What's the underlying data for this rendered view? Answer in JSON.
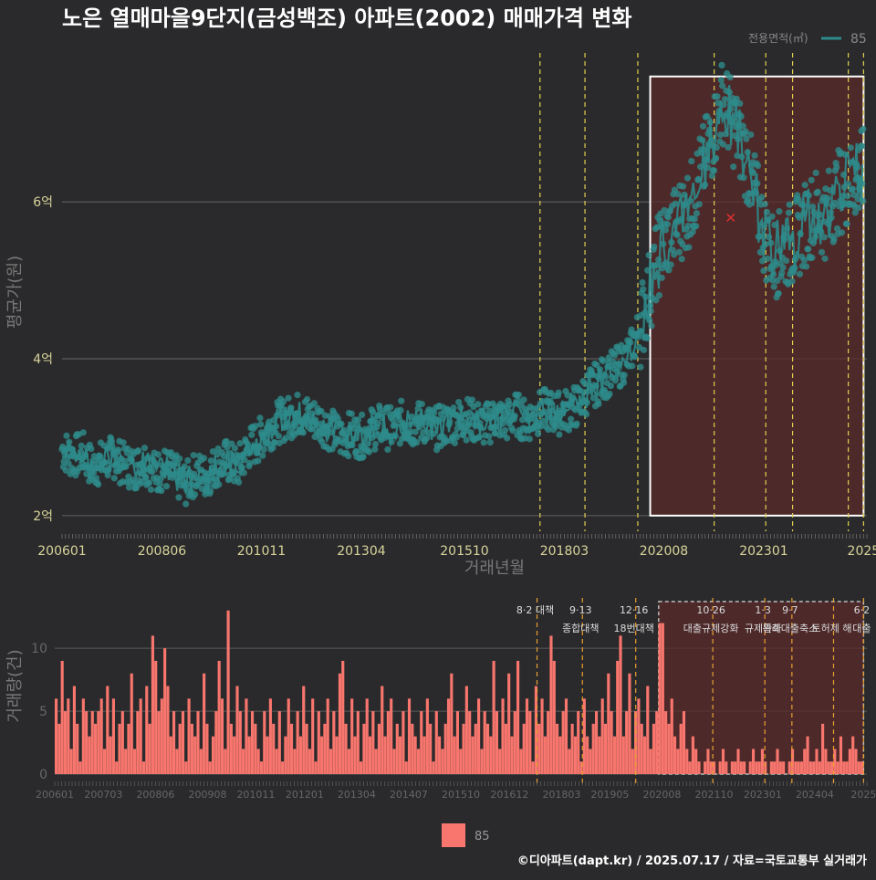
{
  "title": "노은 열매마을9단지(금성백조) 아파트(2002) 매매가격 변화",
  "legend_top": {
    "title": "전용면적(㎡)",
    "label": "85"
  },
  "legend_bottom": {
    "label": "85"
  },
  "footer": "©디아파트(dapt.kr) / 2025.07.17 / 자료=국토교통부 실거래가",
  "colors": {
    "background": "#2a2a2c",
    "series": "#2e8b8b",
    "bar": "#f8766d",
    "highlight_fill": "#5a2a2a",
    "vline": "#e0d050",
    "vline_orange": "#e8a030",
    "axis_text_top": "#d8d49a",
    "axis_text_bottom": "#666666",
    "grid": "#5a5a5a"
  },
  "chart_data": [
    {
      "type": "line",
      "title": "노은 열매마을9단지(금성백조) 아파트(2002) 매매가격 변화",
      "xlabel": "거래년월",
      "ylabel": "평균가(원)",
      "x_range": [
        2006.0,
        2025.5
      ],
      "ylim": [
        1.8,
        7.9
      ],
      "y_ticks": [
        {
          "value": 2,
          "label": "2억"
        },
        {
          "value": 4,
          "label": "4억"
        },
        {
          "value": 6,
          "label": "6억"
        }
      ],
      "x_ticks": [
        {
          "value": 2006.0,
          "label": "200601"
        },
        {
          "value": 2008.42,
          "label": "200806"
        },
        {
          "value": 2010.83,
          "label": "201011"
        },
        {
          "value": 2013.25,
          "label": "201304"
        },
        {
          "value": 2015.75,
          "label": "201510"
        },
        {
          "value": 2018.17,
          "label": "201803"
        },
        {
          "value": 2020.58,
          "label": "202008"
        },
        {
          "value": 2023.0,
          "label": "202301"
        },
        {
          "value": 2025.42,
          "label": "2025"
        }
      ],
      "highlight_range": [
        2020.25,
        2025.42
      ],
      "highlight_ylim": [
        2.0,
        7.6
      ],
      "policy_lines": [
        2017.58,
        2018.67,
        2019.95,
        2021.8,
        2023.05,
        2023.7,
        2025.05,
        2025.42
      ],
      "outlier": {
        "x": 2022.2,
        "y": 5.8
      },
      "series": [
        {
          "name": "85",
          "points": [
            [
              2006.0,
              2.85
            ],
            [
              2006.25,
              2.75
            ],
            [
              2006.5,
              2.8
            ],
            [
              2006.75,
              2.6
            ],
            [
              2007.0,
              2.7
            ],
            [
              2007.25,
              2.75
            ],
            [
              2007.5,
              2.65
            ],
            [
              2007.75,
              2.6
            ],
            [
              2008.0,
              2.7
            ],
            [
              2008.25,
              2.55
            ],
            [
              2008.5,
              2.6
            ],
            [
              2008.75,
              2.5
            ],
            [
              2009.0,
              2.4
            ],
            [
              2009.25,
              2.55
            ],
            [
              2009.5,
              2.5
            ],
            [
              2009.75,
              2.65
            ],
            [
              2010.0,
              2.7
            ],
            [
              2010.25,
              2.6
            ],
            [
              2010.5,
              2.85
            ],
            [
              2010.75,
              2.95
            ],
            [
              2011.0,
              3.1
            ],
            [
              2011.25,
              3.2
            ],
            [
              2011.5,
              3.25
            ],
            [
              2011.75,
              3.3
            ],
            [
              2012.0,
              3.25
            ],
            [
              2012.25,
              3.2
            ],
            [
              2012.5,
              3.1
            ],
            [
              2012.75,
              3.0
            ],
            [
              2013.0,
              3.05
            ],
            [
              2013.25,
              3.0
            ],
            [
              2013.5,
              3.1
            ],
            [
              2013.75,
              3.15
            ],
            [
              2014.0,
              3.1
            ],
            [
              2014.25,
              3.2
            ],
            [
              2014.5,
              3.15
            ],
            [
              2014.75,
              3.2
            ],
            [
              2015.0,
              3.1
            ],
            [
              2015.25,
              3.15
            ],
            [
              2015.5,
              3.2
            ],
            [
              2015.75,
              3.25
            ],
            [
              2016.0,
              3.2
            ],
            [
              2016.25,
              3.15
            ],
            [
              2016.5,
              3.25
            ],
            [
              2016.75,
              3.2
            ],
            [
              2017.0,
              3.3
            ],
            [
              2017.25,
              3.2
            ],
            [
              2017.5,
              3.3
            ],
            [
              2017.75,
              3.35
            ],
            [
              2018.0,
              3.3
            ],
            [
              2018.25,
              3.35
            ],
            [
              2018.5,
              3.4
            ],
            [
              2018.75,
              3.6
            ],
            [
              2019.0,
              3.7
            ],
            [
              2019.25,
              3.8
            ],
            [
              2019.5,
              3.9
            ],
            [
              2019.75,
              4.05
            ],
            [
              2020.0,
              4.4
            ],
            [
              2020.25,
              4.9
            ],
            [
              2020.5,
              5.4
            ],
            [
              2020.75,
              5.6
            ],
            [
              2021.0,
              5.8
            ],
            [
              2021.25,
              6.0
            ],
            [
              2021.5,
              6.4
            ],
            [
              2021.75,
              6.8
            ],
            [
              2022.0,
              7.3
            ],
            [
              2022.25,
              7.0
            ],
            [
              2022.5,
              6.7
            ],
            [
              2022.75,
              6.2
            ],
            [
              2023.0,
              5.6
            ],
            [
              2023.25,
              5.3
            ],
            [
              2023.5,
              5.4
            ],
            [
              2023.75,
              5.5
            ],
            [
              2024.0,
              5.7
            ],
            [
              2024.25,
              5.9
            ],
            [
              2024.5,
              5.8
            ],
            [
              2024.75,
              6.1
            ],
            [
              2025.0,
              6.2
            ],
            [
              2025.25,
              6.3
            ],
            [
              2025.42,
              6.4
            ]
          ]
        }
      ]
    },
    {
      "type": "bar",
      "ylabel": "거래량(건)",
      "x_range": [
        2006.0,
        2025.5
      ],
      "ylim": [
        0,
        14
      ],
      "y_ticks": [
        0,
        5,
        10
      ],
      "x_ticks": [
        {
          "value": 2006.0,
          "label": "200601"
        },
        {
          "value": 2007.17,
          "label": "200703"
        },
        {
          "value": 2008.42,
          "label": "200806"
        },
        {
          "value": 2009.67,
          "label": "200908"
        },
        {
          "value": 2010.83,
          "label": "201011"
        },
        {
          "value": 2012.0,
          "label": "201201"
        },
        {
          "value": 2013.25,
          "label": "201304"
        },
        {
          "value": 2014.5,
          "label": "201407"
        },
        {
          "value": 2015.75,
          "label": "201510"
        },
        {
          "value": 2016.92,
          "label": "201612"
        },
        {
          "value": 2018.17,
          "label": "201803"
        },
        {
          "value": 2019.33,
          "label": "201905"
        },
        {
          "value": 2020.58,
          "label": "202008"
        },
        {
          "value": 2021.83,
          "label": "202110"
        },
        {
          "value": 2023.0,
          "label": "202301"
        },
        {
          "value": 2024.25,
          "label": "202404"
        },
        {
          "value": 2025.42,
          "label": "2025"
        }
      ],
      "highlight_range": [
        2020.5,
        2025.42
      ],
      "policy_lines": [
        {
          "x": 2017.58,
          "label1": "8·2 대책",
          "label2": ""
        },
        {
          "x": 2018.67,
          "label1": "9·13",
          "label2": "종합대책"
        },
        {
          "x": 2019.95,
          "label1": "12·16",
          "label2": "18번대책"
        },
        {
          "x": 2021.8,
          "label1": "10·26",
          "label2": "대출규제강화"
        },
        {
          "x": 2023.05,
          "label1": "1·3",
          "label2": "규제완화"
        },
        {
          "x": 2023.7,
          "label1": "9·7",
          "label2": "특례대출축소"
        },
        {
          "x": 2024.7,
          "label1": "",
          "label2": "토허제 해"
        },
        {
          "x": 2025.42,
          "label1": "6·2",
          "label2": "대출"
        }
      ],
      "values": [
        6,
        4,
        9,
        5,
        6,
        2,
        7,
        4,
        1,
        6,
        5,
        3,
        5,
        4,
        5,
        6,
        2,
        7,
        3,
        6,
        1,
        4,
        5,
        2,
        4,
        8,
        2,
        5,
        6,
        1,
        7,
        4,
        11,
        9,
        5,
        6,
        10,
        7,
        3,
        5,
        2,
        4,
        5,
        1,
        6,
        4,
        3,
        5,
        2,
        8,
        4,
        1,
        3,
        5,
        9,
        6,
        2,
        13,
        4,
        3,
        7,
        5,
        2,
        6,
        3,
        5,
        4,
        2,
        1,
        5,
        3,
        6,
        4,
        2,
        5,
        1,
        3,
        6,
        4,
        2,
        5,
        3,
        7,
        4,
        2,
        6,
        1,
        5,
        3,
        4,
        6,
        2,
        5,
        3,
        8,
        9,
        4,
        2,
        6,
        3,
        5,
        1,
        4,
        6,
        3,
        5,
        2,
        4,
        7,
        3,
        5,
        6,
        2,
        4,
        3,
        5,
        1,
        6,
        4,
        3,
        2,
        5,
        3,
        6,
        4,
        1,
        5,
        3,
        2,
        4,
        6,
        8,
        3,
        5,
        2,
        4,
        7,
        5,
        3,
        4,
        6,
        2,
        5,
        4,
        3,
        9,
        5,
        2,
        6,
        4,
        8,
        3,
        5,
        9,
        2,
        4,
        6,
        5,
        1,
        7,
        4,
        6,
        3,
        5,
        11,
        9,
        4,
        3,
        5,
        6,
        2,
        4,
        3,
        5,
        1,
        6,
        3,
        2,
        4,
        5,
        3,
        6,
        4,
        8,
        5,
        3,
        9,
        11,
        3,
        5,
        8,
        2,
        5,
        6,
        4,
        3,
        7,
        2,
        4,
        5,
        12,
        12,
        5,
        4,
        6,
        3,
        2,
        4,
        5,
        2,
        1,
        3,
        2,
        1,
        0,
        1,
        2,
        1,
        1,
        0,
        1,
        2,
        1,
        0,
        1,
        1,
        2,
        1,
        1,
        0,
        1,
        2,
        1,
        1,
        2,
        1,
        0,
        1,
        1,
        2,
        1,
        1,
        0,
        1,
        2,
        1,
        1,
        1,
        2,
        3,
        1,
        1,
        2,
        1,
        4,
        2,
        1,
        1,
        2,
        1,
        3,
        1,
        1,
        2,
        3,
        2,
        1,
        1
      ]
    }
  ]
}
